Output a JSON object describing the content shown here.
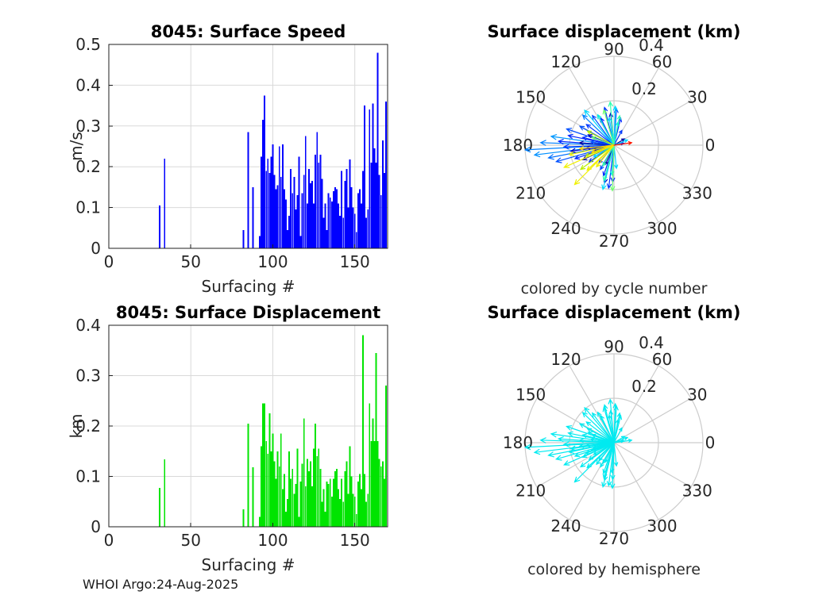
{
  "figure": {
    "background": "#FFFFFF",
    "text_color": "#262626",
    "grid_color": "#D9D9D9",
    "polar_grid_color": "#CCCCCC",
    "axis_color": "#1F1F1F"
  },
  "footer": {
    "text": "WHOI Argo:24-Aug-2025"
  },
  "chart_data": [
    {
      "type": "bar",
      "title": "8045: Surface Speed",
      "xlabel": "Surfacing #",
      "ylabel": "m/s",
      "bar_color": "#0000FF",
      "xlim": [
        0,
        170
      ],
      "ylim": [
        0,
        0.5
      ],
      "xticks": [
        0,
        50,
        100,
        150
      ],
      "xtick_labels": [
        "0",
        "50",
        "100",
        "150"
      ],
      "yticks": [
        0,
        0.1,
        0.2,
        0.3,
        0.4,
        0.5
      ],
      "ytick_labels": [
        "0",
        "0.1",
        "0.2",
        "0.3",
        "0.4",
        "0.5"
      ],
      "grid": true,
      "bars": [
        [
          31,
          0.105
        ],
        [
          34,
          0.22
        ],
        [
          82,
          0.045
        ],
        [
          85,
          0.285
        ],
        [
          88,
          0.15
        ],
        [
          92,
          0.03
        ],
        [
          93,
          0.225
        ],
        [
          94,
          0.315
        ],
        [
          95,
          0.375
        ],
        [
          96,
          0.19
        ],
        [
          97,
          0.22
        ],
        [
          98,
          0.185
        ],
        [
          99,
          0.225
        ],
        [
          100,
          0.255
        ],
        [
          101,
          0.18
        ],
        [
          102,
          0.145
        ],
        [
          103,
          0.155
        ],
        [
          104,
          0.25
        ],
        [
          105,
          0.175
        ],
        [
          106,
          0.255
        ],
        [
          107,
          0.145
        ],
        [
          108,
          0.12
        ],
        [
          109,
          0.045
        ],
        [
          110,
          0.08
        ],
        [
          111,
          0.195
        ],
        [
          112,
          0.135
        ],
        [
          113,
          0.175
        ],
        [
          114,
          0.095
        ],
        [
          115,
          0.13
        ],
        [
          116,
          0.225
        ],
        [
          117,
          0.03
        ],
        [
          118,
          0.135
        ],
        [
          119,
          0.18
        ],
        [
          120,
          0.275
        ],
        [
          121,
          0.11
        ],
        [
          122,
          0.195
        ],
        [
          123,
          0.16
        ],
        [
          124,
          0.165
        ],
        [
          125,
          0.11
        ],
        [
          126,
          0.23
        ],
        [
          127,
          0.285
        ],
        [
          128,
          0.21
        ],
        [
          129,
          0.23
        ],
        [
          130,
          0.17
        ],
        [
          131,
          0.075
        ],
        [
          132,
          0.11
        ],
        [
          133,
          0.045
        ],
        [
          134,
          0.135
        ],
        [
          135,
          0.125
        ],
        [
          136,
          0.115
        ],
        [
          137,
          0.14
        ],
        [
          138,
          0.15
        ],
        [
          139,
          0.145
        ],
        [
          140,
          0.11
        ],
        [
          141,
          0.08
        ],
        [
          142,
          0.19
        ],
        [
          143,
          0.075
        ],
        [
          144,
          0.165
        ],
        [
          145,
          0.195
        ],
        [
          146,
          0.1
        ],
        [
          147,
          0.218
        ],
        [
          148,
          0.15
        ],
        [
          149,
          0.1
        ],
        [
          150,
          0.085
        ],
        [
          151,
          0.04
        ],
        [
          152,
          0.135
        ],
        [
          153,
          0.145
        ],
        [
          154,
          0.11
        ],
        [
          155,
          0.19
        ],
        [
          156,
          0.35
        ],
        [
          157,
          0.075
        ],
        [
          158,
          0.095
        ],
        [
          159,
          0.34
        ],
        [
          160,
          0.21
        ],
        [
          161,
          0.355
        ],
        [
          162,
          0.245
        ],
        [
          163,
          0.21
        ],
        [
          164,
          0.48
        ],
        [
          165,
          0.18
        ],
        [
          166,
          0.13
        ],
        [
          167,
          0.265
        ],
        [
          168,
          0.185
        ],
        [
          169,
          0.36
        ]
      ]
    },
    {
      "type": "polar_quiver",
      "title": "Surface displacement (km)",
      "caption": "colored by cycle number",
      "rmax": 0.4,
      "rings": [
        0.2,
        0.4
      ],
      "ring_labels": [
        "0.2",
        "0.4"
      ],
      "angle_ticks": [
        0,
        30,
        60,
        90,
        120,
        150,
        180,
        210,
        240,
        270,
        300,
        330
      ],
      "arrows": [
        [
          183,
          0.4,
          "#0080FF"
        ],
        [
          187,
          0.36,
          "#0090FF"
        ],
        [
          178,
          0.33,
          "#0080FF"
        ],
        [
          191,
          0.3,
          "#0070FF"
        ],
        [
          172,
          0.285,
          "#0098FF"
        ],
        [
          196,
          0.27,
          "#0050FF"
        ],
        [
          176,
          0.25,
          "#0028FF"
        ],
        [
          182,
          0.225,
          "#0038FF"
        ],
        [
          168,
          0.21,
          "#0028FF"
        ],
        [
          188,
          0.195,
          "#0000C8"
        ],
        [
          161,
          0.225,
          "#0050FF"
        ],
        [
          199,
          0.185,
          "#0028FF"
        ],
        [
          205,
          0.155,
          "#0000A0"
        ],
        [
          151,
          0.175,
          "#0050FF"
        ],
        [
          214,
          0.135,
          "#0028FF"
        ],
        [
          158,
          0.125,
          "#0000C8"
        ],
        [
          176,
          0.155,
          "#0000A0"
        ],
        [
          166,
          0.145,
          "#0028FF"
        ],
        [
          186,
          0.125,
          "#0000C8"
        ],
        [
          172,
          0.105,
          "#0050FF"
        ],
        [
          193,
          0.095,
          "#0000A0"
        ],
        [
          230,
          0.105,
          "#0028FF"
        ],
        [
          241,
          0.125,
          "#0050FF"
        ],
        [
          251,
          0.145,
          "#0028FF"
        ],
        [
          256,
          0.175,
          "#0000C8"
        ],
        [
          263,
          0.195,
          "#0038FF"
        ],
        [
          268,
          0.165,
          "#0028FF"
        ],
        [
          246,
          0.095,
          "#0000A0"
        ],
        [
          62,
          0.075,
          "#0038FF"
        ],
        [
          76,
          0.125,
          "#0028FF"
        ],
        [
          86,
          0.165,
          "#0050FF"
        ],
        [
          96,
          0.145,
          "#0000C8"
        ],
        [
          104,
          0.175,
          "#0038FF"
        ],
        [
          116,
          0.135,
          "#0028FF"
        ],
        [
          126,
          0.165,
          "#0050FF"
        ],
        [
          136,
          0.195,
          "#0080FF"
        ],
        [
          143,
          0.155,
          "#0038FF"
        ],
        [
          31,
          0.055,
          "#0000A0"
        ],
        [
          12,
          0.045,
          "#0028FF"
        ],
        [
          88,
          0.175,
          "#00D8FF"
        ],
        [
          100,
          0.125,
          "#00D8FF"
        ],
        [
          80,
          0.105,
          "#00F0E0"
        ],
        [
          210,
          0.105,
          "#00D8FF"
        ],
        [
          256,
          0.205,
          "#00D8FF"
        ],
        [
          266,
          0.135,
          "#00F0E0"
        ],
        [
          276,
          0.105,
          "#00D8FF"
        ],
        [
          21,
          0.065,
          "#00D8FF"
        ],
        [
          130,
          0.205,
          "#00D8FF"
        ],
        [
          118,
          0.155,
          "#00F0E0"
        ],
        [
          95,
          0.195,
          "#30FFB0"
        ],
        [
          106,
          0.165,
          "#70FF70"
        ],
        [
          79,
          0.135,
          "#30FFB0"
        ],
        [
          254,
          0.165,
          "#30FFB0"
        ],
        [
          268,
          0.205,
          "#70FF70"
        ],
        [
          242,
          0.105,
          "#30FFB0"
        ],
        [
          160,
          0.105,
          "#70FF70"
        ],
        [
          152,
          0.135,
          "#B8F000"
        ],
        [
          201,
          0.135,
          "#B8F000"
        ],
        [
          216,
          0.185,
          "#B8F000"
        ],
        [
          192,
          0.205,
          "#F0F000"
        ],
        [
          204,
          0.245,
          "#F0F000"
        ],
        [
          225,
          0.25,
          "#F0F000"
        ],
        [
          223,
          0.165,
          "#F0F000"
        ],
        [
          186,
          0.155,
          "#FFD800"
        ],
        [
          231,
          0.125,
          "#F0F000"
        ],
        [
          198,
          0.105,
          "#FFD800"
        ],
        [
          8,
          0.08,
          "#FF1800"
        ]
      ]
    },
    {
      "type": "bar",
      "title": "8045: Surface Displacement",
      "xlabel": "Surfacing #",
      "ylabel": "km",
      "bar_color": "#00E400",
      "xlim": [
        0,
        170
      ],
      "ylim": [
        0,
        0.4
      ],
      "xticks": [
        0,
        50,
        100,
        150
      ],
      "xtick_labels": [
        "0",
        "50",
        "100",
        "150"
      ],
      "yticks": [
        0,
        0.1,
        0.2,
        0.3,
        0.4
      ],
      "ytick_labels": [
        "0",
        "0.1",
        "0.2",
        "0.3",
        "0.4"
      ],
      "grid": true,
      "bars": [
        [
          31,
          0.077
        ],
        [
          34,
          0.134
        ],
        [
          82,
          0.035
        ],
        [
          85,
          0.205
        ],
        [
          88,
          0.118
        ],
        [
          92,
          0.02
        ],
        [
          93,
          0.16
        ],
        [
          94,
          0.245
        ],
        [
          95,
          0.245
        ],
        [
          96,
          0.17
        ],
        [
          97,
          0.145
        ],
        [
          98,
          0.225
        ],
        [
          99,
          0.15
        ],
        [
          100,
          0.185
        ],
        [
          101,
          0.13
        ],
        [
          102,
          0.095
        ],
        [
          103,
          0.15
        ],
        [
          104,
          0.12
        ],
        [
          105,
          0.185
        ],
        [
          106,
          0.075
        ],
        [
          107,
          0.105
        ],
        [
          108,
          0.03
        ],
        [
          109,
          0.055
        ],
        [
          110,
          0.15
        ],
        [
          111,
          0.095
        ],
        [
          112,
          0.115
        ],
        [
          113,
          0.065
        ],
        [
          114,
          0.085
        ],
        [
          115,
          0.155
        ],
        [
          116,
          0.02
        ],
        [
          117,
          0.09
        ],
        [
          118,
          0.125
        ],
        [
          119,
          0.215
        ],
        [
          120,
          0.08
        ],
        [
          121,
          0.135
        ],
        [
          122,
          0.11
        ],
        [
          123,
          0.13
        ],
        [
          124,
          0.08
        ],
        [
          125,
          0.155
        ],
        [
          126,
          0.205
        ],
        [
          127,
          0.14
        ],
        [
          128,
          0.155
        ],
        [
          129,
          0.115
        ],
        [
          130,
          0.05
        ],
        [
          131,
          0.075
        ],
        [
          132,
          0.03
        ],
        [
          133,
          0.09
        ],
        [
          134,
          0.085
        ],
        [
          135,
          0.095
        ],
        [
          136,
          0.06
        ],
        [
          137,
          0.095
        ],
        [
          138,
          0.11
        ],
        [
          139,
          0.115
        ],
        [
          140,
          0.075
        ],
        [
          141,
          0.055
        ],
        [
          142,
          0.095
        ],
        [
          143,
          0.05
        ],
        [
          144,
          0.11
        ],
        [
          145,
          0.13
        ],
        [
          146,
          0.065
        ],
        [
          147,
          0.16
        ],
        [
          148,
          0.1
        ],
        [
          149,
          0.065
        ],
        [
          150,
          0.06
        ],
        [
          151,
          0.025
        ],
        [
          152,
          0.09
        ],
        [
          153,
          0.105
        ],
        [
          154,
          0.075
        ],
        [
          155,
          0.38
        ],
        [
          156,
          0.105
        ],
        [
          157,
          0.05
        ],
        [
          158,
          0.065
        ],
        [
          159,
          0.245
        ],
        [
          160,
          0.17
        ],
        [
          161,
          0.215
        ],
        [
          162,
          0.17
        ],
        [
          163,
          0.345
        ],
        [
          164,
          0.17
        ],
        [
          165,
          0.135
        ],
        [
          166,
          0.12
        ],
        [
          167,
          0.13
        ],
        [
          168,
          0.095
        ],
        [
          169,
          0.28
        ]
      ]
    },
    {
      "type": "polar_quiver",
      "title": "Surface displacement (km)",
      "caption": "colored by hemisphere",
      "rmax": 0.4,
      "rings": [
        0.2,
        0.4
      ],
      "ring_labels": [
        "0.2",
        "0.4"
      ],
      "angle_ticks": [
        0,
        30,
        60,
        90,
        120,
        150,
        180,
        210,
        240,
        270,
        300,
        330
      ],
      "arrow_color": "#00EAF0",
      "arrows_from": 1
    }
  ]
}
